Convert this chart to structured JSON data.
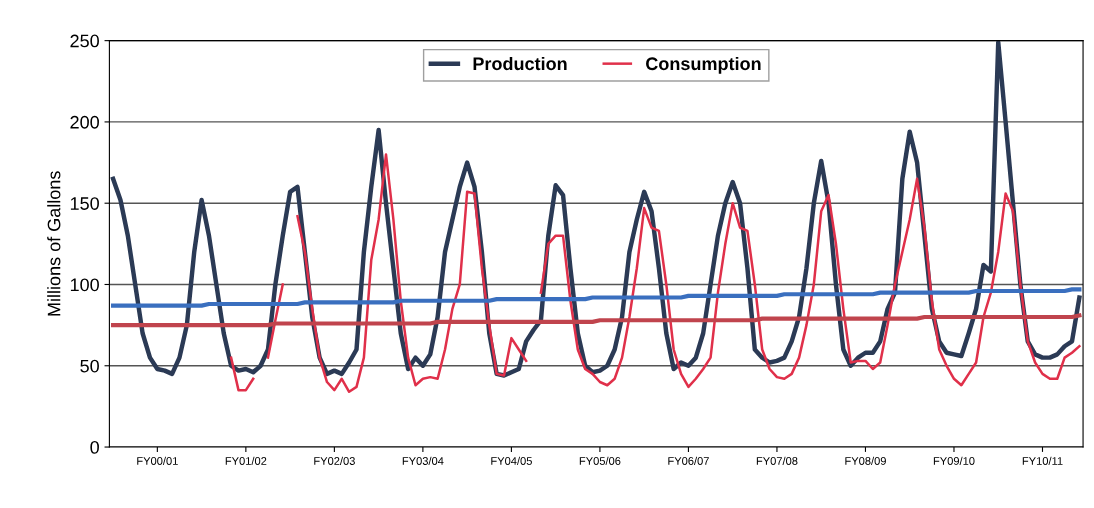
{
  "chart_data": {
    "type": "line",
    "ylabel": "Millions of Gallons",
    "categories": [
      null,
      null,
      null,
      null,
      null,
      null,
      "FY00/01",
      null,
      null,
      null,
      null,
      null,
      null,
      null,
      null,
      null,
      null,
      null,
      "FY01/02",
      null,
      null,
      null,
      null,
      null,
      null,
      null,
      null,
      null,
      null,
      null,
      "FY02/03",
      null,
      null,
      null,
      null,
      null,
      null,
      null,
      null,
      null,
      null,
      null,
      "FY03/04",
      null,
      null,
      null,
      null,
      null,
      null,
      null,
      null,
      null,
      null,
      null,
      "FY04/05",
      null,
      null,
      null,
      null,
      null,
      null,
      null,
      null,
      null,
      null,
      null,
      "FY05/06",
      null,
      null,
      null,
      null,
      null,
      null,
      null,
      null,
      null,
      null,
      null,
      "FY06/07",
      null,
      null,
      null,
      null,
      null,
      null,
      null,
      null,
      null,
      null,
      null,
      "FY07/08",
      null,
      null,
      null,
      null,
      null,
      null,
      null,
      null,
      null,
      null,
      null,
      "FY08/09",
      null,
      null,
      null,
      null,
      null,
      null,
      null,
      null,
      null,
      null,
      null,
      "FY09/10",
      null,
      null,
      null,
      null,
      null,
      null,
      null,
      null,
      null,
      null,
      null,
      "FY10/11",
      null,
      null,
      null,
      null,
      null
    ],
    "series": [
      {
        "name": "Production",
        "color": "#2b3a55",
        "values": [
          165,
          152,
          130,
          100,
          70,
          55,
          48,
          47,
          45,
          55,
          75,
          120,
          152,
          130,
          100,
          70,
          50,
          47,
          48,
          46,
          50,
          60,
          100,
          130,
          157,
          160,
          120,
          80,
          55,
          45,
          47,
          45,
          52,
          60,
          120,
          160,
          195,
          150,
          110,
          70,
          48,
          55,
          50,
          57,
          80,
          120,
          140,
          160,
          175,
          160,
          120,
          70,
          45,
          44,
          46,
          48,
          65,
          72,
          78,
          130,
          161,
          155,
          110,
          70,
          50,
          46,
          47,
          50,
          60,
          80,
          120,
          140,
          157,
          145,
          110,
          70,
          48,
          52,
          50,
          55,
          70,
          100,
          130,
          150,
          163,
          150,
          110,
          60,
          55,
          52,
          53,
          55,
          65,
          80,
          110,
          150,
          176,
          150,
          100,
          60,
          50,
          55,
          58,
          58,
          65,
          85,
          95,
          165,
          194,
          175,
          130,
          85,
          65,
          58,
          57,
          56,
          70,
          85,
          112,
          108,
          249,
          200,
          150,
          100,
          65,
          57,
          55,
          55,
          57,
          62,
          65,
          92
        ]
      },
      {
        "name": "Consumption",
        "color": "#e0304a",
        "values": [
          null,
          null,
          null,
          null,
          null,
          null,
          null,
          null,
          null,
          null,
          null,
          null,
          null,
          null,
          null,
          null,
          55,
          35,
          35,
          42,
          null,
          55,
          78,
          100,
          null,
          142,
          120,
          85,
          55,
          40,
          35,
          42,
          34,
          37,
          55,
          115,
          140,
          180,
          140,
          90,
          55,
          38,
          42,
          43,
          42,
          60,
          85,
          100,
          157,
          156,
          110,
          75,
          45,
          44,
          67,
          60,
          53,
          null,
          95,
          125,
          130,
          130,
          90,
          60,
          48,
          45,
          40,
          38,
          42,
          55,
          80,
          110,
          147,
          135,
          133,
          100,
          60,
          45,
          37,
          42,
          48,
          55,
          95,
          125,
          150,
          135,
          133,
          100,
          60,
          48,
          43,
          42,
          45,
          55,
          75,
          100,
          145,
          155,
          125,
          85,
          52,
          53,
          53,
          48,
          52,
          75,
          100,
          120,
          140,
          165,
          135,
          90,
          60,
          50,
          42,
          38,
          45,
          52,
          80,
          95,
          120,
          156,
          145,
          100,
          65,
          52,
          45,
          42,
          42,
          55,
          58,
          62
        ]
      },
      {
        "type": "line",
        "color": "#3a6fbf",
        "values": [
          87,
          87,
          87,
          87,
          87,
          87,
          87,
          87,
          87,
          87,
          87,
          87,
          87,
          88,
          88,
          88,
          88,
          88,
          88,
          88,
          88,
          88,
          88,
          88,
          88,
          88,
          89,
          89,
          89,
          89,
          89,
          89,
          89,
          89,
          89,
          89,
          89,
          89,
          89,
          90,
          90,
          90,
          90,
          90,
          90,
          90,
          90,
          90,
          90,
          90,
          90,
          90,
          91,
          91,
          91,
          91,
          91,
          91,
          91,
          91,
          91,
          91,
          91,
          91,
          91,
          92,
          92,
          92,
          92,
          92,
          92,
          92,
          92,
          92,
          92,
          92,
          92,
          92,
          93,
          93,
          93,
          93,
          93,
          93,
          93,
          93,
          93,
          93,
          93,
          93,
          93,
          94,
          94,
          94,
          94,
          94,
          94,
          94,
          94,
          94,
          94,
          94,
          94,
          94,
          95,
          95,
          95,
          95,
          95,
          95,
          95,
          95,
          95,
          95,
          95,
          95,
          95,
          96,
          96,
          96,
          96,
          96,
          96,
          96,
          96,
          96,
          96,
          96,
          96,
          96,
          97,
          97
        ]
      },
      {
        "type": "line",
        "color": "#c0444d",
        "values": [
          75,
          75,
          75,
          75,
          75,
          75,
          75,
          75,
          75,
          75,
          75,
          75,
          75,
          75,
          75,
          75,
          75,
          75,
          75,
          75,
          75,
          75,
          76,
          76,
          76,
          76,
          76,
          76,
          76,
          76,
          76,
          76,
          76,
          76,
          76,
          76,
          76,
          76,
          76,
          76,
          76,
          76,
          76,
          76,
          77,
          77,
          77,
          77,
          77,
          77,
          77,
          77,
          77,
          77,
          77,
          77,
          77,
          77,
          77,
          77,
          77,
          77,
          77,
          77,
          77,
          77,
          78,
          78,
          78,
          78,
          78,
          78,
          78,
          78,
          78,
          78,
          78,
          78,
          78,
          78,
          78,
          78,
          78,
          78,
          78,
          78,
          78,
          78,
          79,
          79,
          79,
          79,
          79,
          79,
          79,
          79,
          79,
          79,
          79,
          79,
          79,
          79,
          79,
          79,
          79,
          79,
          79,
          79,
          79,
          79,
          80,
          80,
          80,
          80,
          80,
          80,
          80,
          80,
          80,
          80,
          80,
          80,
          80,
          80,
          80,
          80,
          80,
          80,
          80,
          80,
          80,
          81
        ]
      }
    ],
    "ylim": [
      0,
      250
    ],
    "yticks": [
      0,
      50,
      100,
      150,
      200,
      250
    ],
    "grid": "y",
    "legend": "top"
  }
}
